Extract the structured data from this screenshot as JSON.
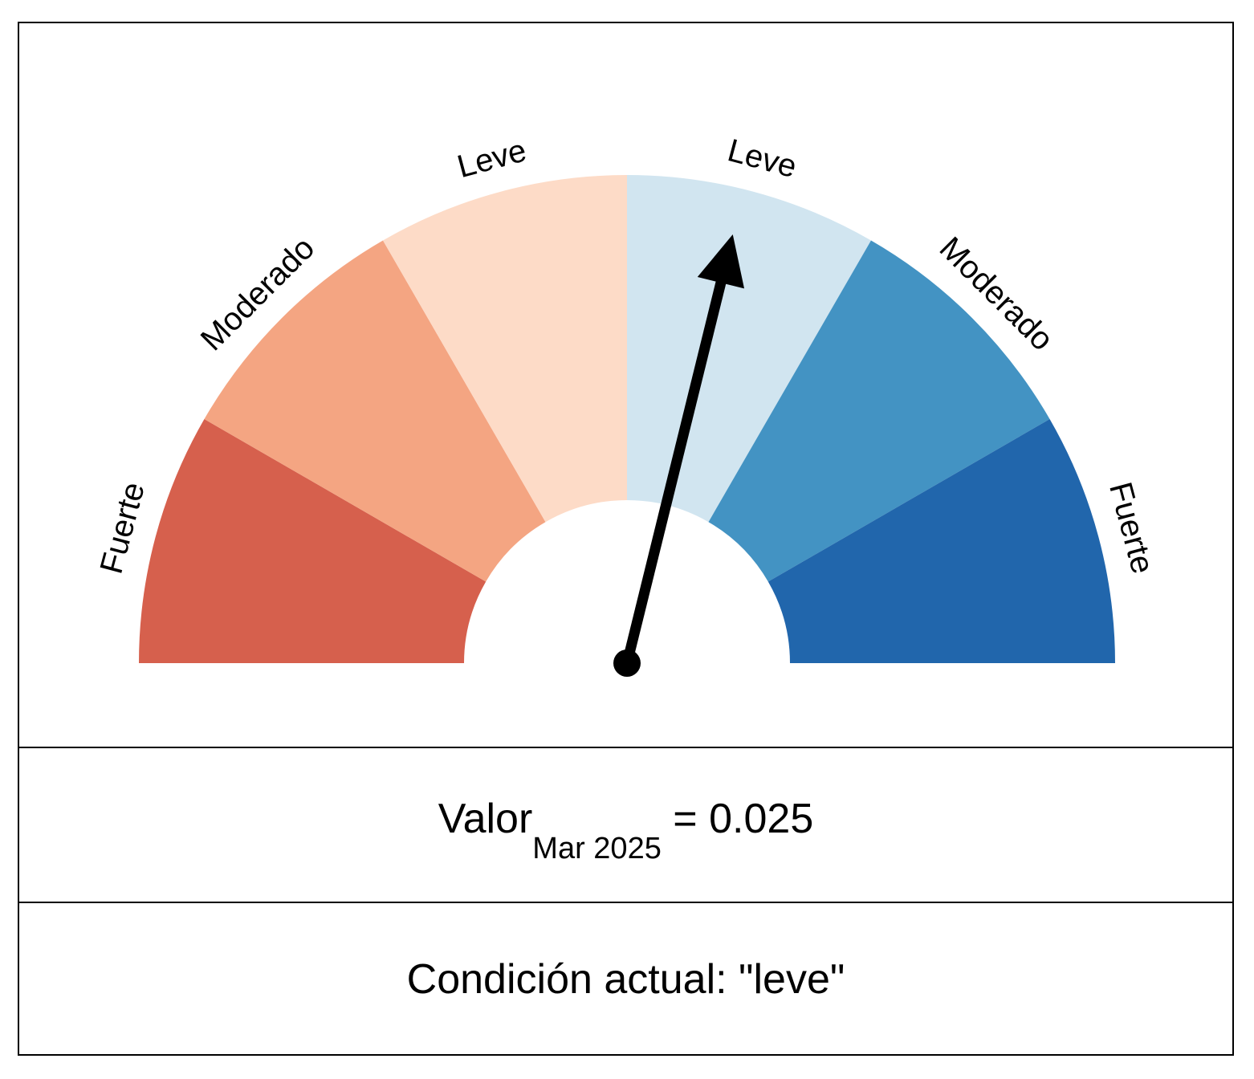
{
  "chart_data": {
    "type": "gauge",
    "segments": [
      {
        "label": "Fuerte",
        "color": "#D6604D"
      },
      {
        "label": "Moderado",
        "color": "#F4A582"
      },
      {
        "label": "Leve",
        "color": "#FDDBC7"
      },
      {
        "label": "Leve",
        "color": "#D1E5F0"
      },
      {
        "label": "Moderado",
        "color": "#4393C3"
      },
      {
        "label": "Fuerte",
        "color": "#2166AC"
      }
    ],
    "needle_fraction": 0.577,
    "value_label": "Valor",
    "value_period": "Mar 2025",
    "value": "0.025",
    "condition_text": "Condición actual: \"leve\""
  }
}
